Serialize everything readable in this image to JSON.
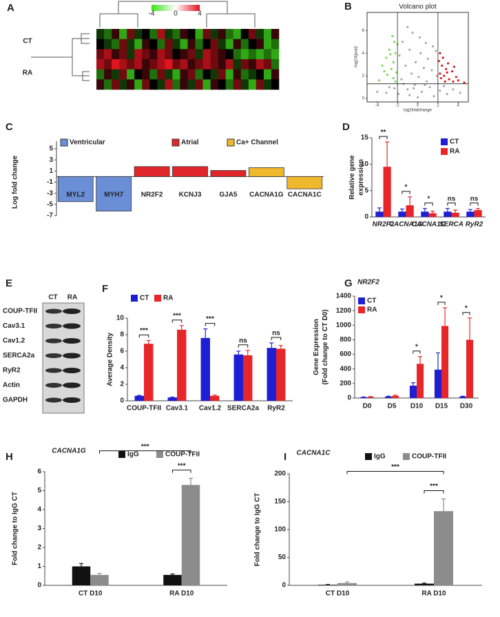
{
  "panels": [
    "A",
    "B",
    "C",
    "D",
    "E",
    "F",
    "G",
    "H",
    "I"
  ],
  "blot": {
    "columns": [
      "CT",
      "RA"
    ],
    "rows": [
      "COUP-TFII",
      "Cav3.1",
      "Cav1.2",
      "SERCA2a",
      "RyR2",
      "Actin",
      "GAPDH"
    ]
  },
  "chart_data": [
    {
      "type": "heatmap",
      "row_groups": [
        "CT",
        "RA"
      ],
      "clim": [
        -4,
        4
      ],
      "cticks": [
        -4,
        0,
        4
      ],
      "values": [
        [
          -1,
          -2,
          1,
          -3,
          2,
          -1,
          0,
          -2,
          3,
          -1,
          -2,
          1,
          0,
          -3,
          2,
          -1,
          1,
          -2,
          -3,
          0,
          2,
          -1,
          -3,
          1
        ],
        [
          0,
          -1,
          -2,
          2,
          -1,
          -3,
          1,
          0,
          -2,
          2,
          -1,
          -3,
          1,
          -2,
          0,
          2,
          -1,
          -3,
          1,
          -2,
          0,
          1,
          -3,
          -2
        ],
        [
          2,
          3,
          1,
          2,
          -1,
          3,
          2,
          1,
          3,
          2,
          0,
          1,
          2,
          -1,
          3,
          2,
          1,
          0,
          -2,
          -3,
          -2,
          -3,
          -2,
          -3
        ],
        [
          3,
          2,
          4,
          3,
          2,
          3,
          1,
          2,
          3,
          4,
          2,
          3,
          1,
          2,
          3,
          2,
          1,
          3,
          -1,
          2,
          1,
          3,
          2,
          -2
        ],
        [
          -2,
          1,
          -1,
          2,
          -3,
          0,
          1,
          -2,
          2,
          -1,
          -3,
          1,
          2,
          -2,
          0,
          -1,
          2,
          -3,
          1,
          -2,
          -1,
          0,
          -3,
          1
        ],
        [
          1,
          -2,
          2,
          -1,
          1,
          -3,
          2,
          0,
          -1,
          3,
          -2,
          1,
          -1,
          2,
          -3,
          1,
          0,
          -2,
          2,
          -1,
          -3,
          2,
          -1,
          0
        ]
      ]
    },
    {
      "type": "scatter",
      "title": "Volcano plot",
      "xlabel": "log2foldchange",
      "ylabel": "-log10(pval)",
      "xlim": [
        -5,
        5
      ],
      "ylim": [
        -0.3,
        7.6
      ],
      "xticks": [
        -4,
        -2,
        0,
        2,
        4
      ],
      "yticks": [
        0,
        2,
        4,
        6
      ],
      "thresholds": {
        "x": [
          -2,
          2
        ],
        "y": [
          1.3
        ]
      },
      "series": [
        {
          "color": "#7ed957",
          "x": [
            -2.5,
            -2.3,
            -2.8,
            -2.2,
            -3.1,
            -2.4,
            -3.5,
            -2.6,
            -2.1,
            -3.0,
            -2.4,
            -3.8,
            -2.2,
            -2.7,
            -2.0,
            -3.3
          ],
          "y": [
            5.5,
            5.0,
            4.3,
            4.0,
            3.6,
            3.2,
            2.9,
            2.6,
            2.3,
            2.1,
            1.8,
            1.6,
            1.5,
            3.9,
            4.8,
            2.4
          ]
        },
        {
          "color": "#a9a9a9",
          "x": [
            -1,
            -0.5,
            0.2,
            -1.5,
            0.8,
            1.5,
            -0.8,
            0.3,
            1.8,
            -1.8,
            1.0,
            -0.2,
            -1.2,
            0.6,
            1.4,
            -0.6,
            0.1,
            1.9,
            -1.6,
            0.9,
            -0.3,
            1.2,
            -1.0,
            0.4,
            2.2,
            -2.3,
            -3.1,
            2.9,
            3.5,
            -0.8,
            1.6,
            -1.9,
            0.0,
            -4.0,
            4.2,
            2.6,
            -2.8,
            -0.4,
            0.7,
            -1.4
          ],
          "y": [
            6.3,
            5.8,
            5.4,
            5.0,
            4.9,
            4.6,
            4.3,
            4.0,
            4.2,
            3.8,
            3.5,
            3.2,
            2.9,
            2.7,
            2.5,
            2.2,
            1.9,
            2.0,
            1.7,
            1.5,
            1.2,
            1.0,
            0.8,
            0.6,
            0.7,
            0.9,
            0.5,
            0.4,
            0.8,
            0.3,
            0.2,
            0.4,
            0.1,
            0.6,
            0.5,
            1.1,
            1.0,
            0.9,
            1.2,
            1.3
          ]
        },
        {
          "color": "#e01818",
          "x": [
            2.2,
            2.5,
            2.1,
            3.0,
            2.4,
            2.8,
            3.4,
            2.2,
            2.6,
            3.8,
            2.3,
            3.1,
            4.0,
            2.7,
            4.6,
            3.5,
            2.9,
            3.6
          ],
          "y": [
            4.0,
            3.6,
            3.3,
            3.1,
            2.9,
            2.6,
            2.4,
            2.2,
            2.0,
            1.9,
            1.8,
            1.7,
            1.6,
            1.5,
            1.4,
            1.5,
            2.3,
            2.8
          ]
        }
      ]
    },
    {
      "type": "bar",
      "ylabel": [
        "Log fold change"
      ],
      "categories": [
        "MYL2",
        "MYH7",
        "NR2F2",
        "KCNJ3",
        "GJA5",
        "CACNA1G",
        "CACNA1C"
      ],
      "series": [
        {
          "name": "Ventricular",
          "color": "#6a8fd6",
          "values": [
            -4.5,
            -6.2,
            null,
            null,
            null,
            null,
            null
          ]
        },
        {
          "name": "Atrial",
          "color": "#e0262a",
          "values": [
            null,
            null,
            1.8,
            1.8,
            1.1,
            null,
            null
          ]
        },
        {
          "name": "Ca+ Channel",
          "color": "#f0b82c",
          "values": [
            null,
            null,
            null,
            null,
            null,
            1.6,
            -2.2
          ]
        }
      ],
      "ylim": [
        -7,
        5
      ],
      "yticks": [
        5,
        3,
        1,
        -1,
        -3,
        -5,
        -7
      ]
    },
    {
      "type": "grouped-bar",
      "ylabel": [
        "Relative gene",
        "expression"
      ],
      "categories": [
        "NR2F2",
        "CACNA1G",
        "CACNA1C",
        "SERCA",
        "RyR2"
      ],
      "series": [
        {
          "name": "CT",
          "color": "#1e1ed2",
          "values": [
            1,
            1,
            1,
            1,
            1
          ],
          "errors": [
            0.7,
            0.5,
            0.6,
            0.6,
            0.4
          ]
        },
        {
          "name": "RA",
          "color": "#e8262a",
          "values": [
            9.5,
            2.2,
            0.7,
            0.8,
            1.3
          ],
          "errors": [
            4.7,
            1.6,
            0.4,
            0.5,
            0.3
          ]
        }
      ],
      "ylim": [
        0,
        15
      ],
      "yticks": [
        0,
        5,
        10,
        15
      ],
      "significance": [
        "**",
        "*",
        "*",
        "ns",
        "ns"
      ]
    },
    {
      "type": "grouped-bar",
      "ylabel": [
        "Average Density"
      ],
      "categories": [
        "COUP-TFII",
        "Cav3.1",
        "Cav1.2",
        "SERCA2a",
        "RyR2"
      ],
      "series": [
        {
          "name": "CT",
          "color": "#1e1ed2",
          "values": [
            0.6,
            0.4,
            7.6,
            5.6,
            6.4
          ],
          "errors": [
            0.05,
            0.05,
            1.1,
            0.4,
            0.6
          ]
        },
        {
          "name": "RA",
          "color": "#e8262a",
          "values": [
            6.9,
            8.6,
            0.6,
            5.5,
            6.3
          ],
          "errors": [
            0.4,
            0.5,
            0.1,
            0.6,
            0.4
          ]
        }
      ],
      "ylim": [
        0,
        10
      ],
      "yticks": [
        0,
        2,
        4,
        6,
        8,
        10
      ],
      "significance": [
        "***",
        "***",
        "***",
        "ns",
        "ns"
      ]
    },
    {
      "type": "grouped-bar",
      "title": "NR2F2",
      "ylabel": [
        "Gene Expression",
        "(Fold change to CT D0)"
      ],
      "categories": [
        "D0",
        "D5",
        "D10",
        "D15",
        "D30"
      ],
      "series": [
        {
          "name": "CT",
          "color": "#1e1ed2",
          "values": [
            10,
            20,
            170,
            390,
            20
          ],
          "errors": [
            5,
            5,
            40,
            230,
            5
          ]
        },
        {
          "name": "RA",
          "color": "#e8262a",
          "values": [
            15,
            30,
            470,
            990,
            800
          ],
          "errors": [
            5,
            10,
            100,
            250,
            300
          ]
        }
      ],
      "ylim": [
        0,
        1400
      ],
      "yticks": [
        0,
        200,
        400,
        600,
        800,
        1000,
        1200,
        1400
      ],
      "significance": [
        null,
        null,
        "*",
        "*",
        "*"
      ]
    },
    {
      "type": "pair-bar",
      "title": "CACNA1G",
      "ylabel": [
        "Fold change to IgG CT"
      ],
      "categories": [
        "CT D10",
        "RA D10"
      ],
      "series": [
        {
          "name": "IgG",
          "color": "#111111",
          "values": [
            1.0,
            0.55
          ],
          "errors": [
            0.15,
            0.05
          ]
        },
        {
          "name": "COUP-TFII",
          "color": "#8c8c8c",
          "values": [
            0.55,
            5.3
          ],
          "errors": [
            0.08,
            0.35
          ]
        }
      ],
      "ylim": [
        0,
        6
      ],
      "yticks": [
        0,
        1,
        2,
        3,
        4,
        5,
        6
      ],
      "significance": [
        "***",
        "***"
      ]
    },
    {
      "type": "pair-bar",
      "title": "CACNA1C",
      "ylabel": [
        "Fold change to IgG CT"
      ],
      "categories": [
        "CT D10",
        "RA D10"
      ],
      "series": [
        {
          "name": "IgG",
          "color": "#111111",
          "values": [
            1,
            3
          ],
          "errors": [
            0.5,
            1
          ]
        },
        {
          "name": "COUP-TFII",
          "color": "#8c8c8c",
          "values": [
            4,
            133
          ],
          "errors": [
            2,
            22
          ]
        }
      ],
      "ylim": [
        0,
        200
      ],
      "yticks": [
        0,
        50,
        100,
        150,
        200
      ],
      "significance": [
        "***",
        "***"
      ]
    }
  ]
}
